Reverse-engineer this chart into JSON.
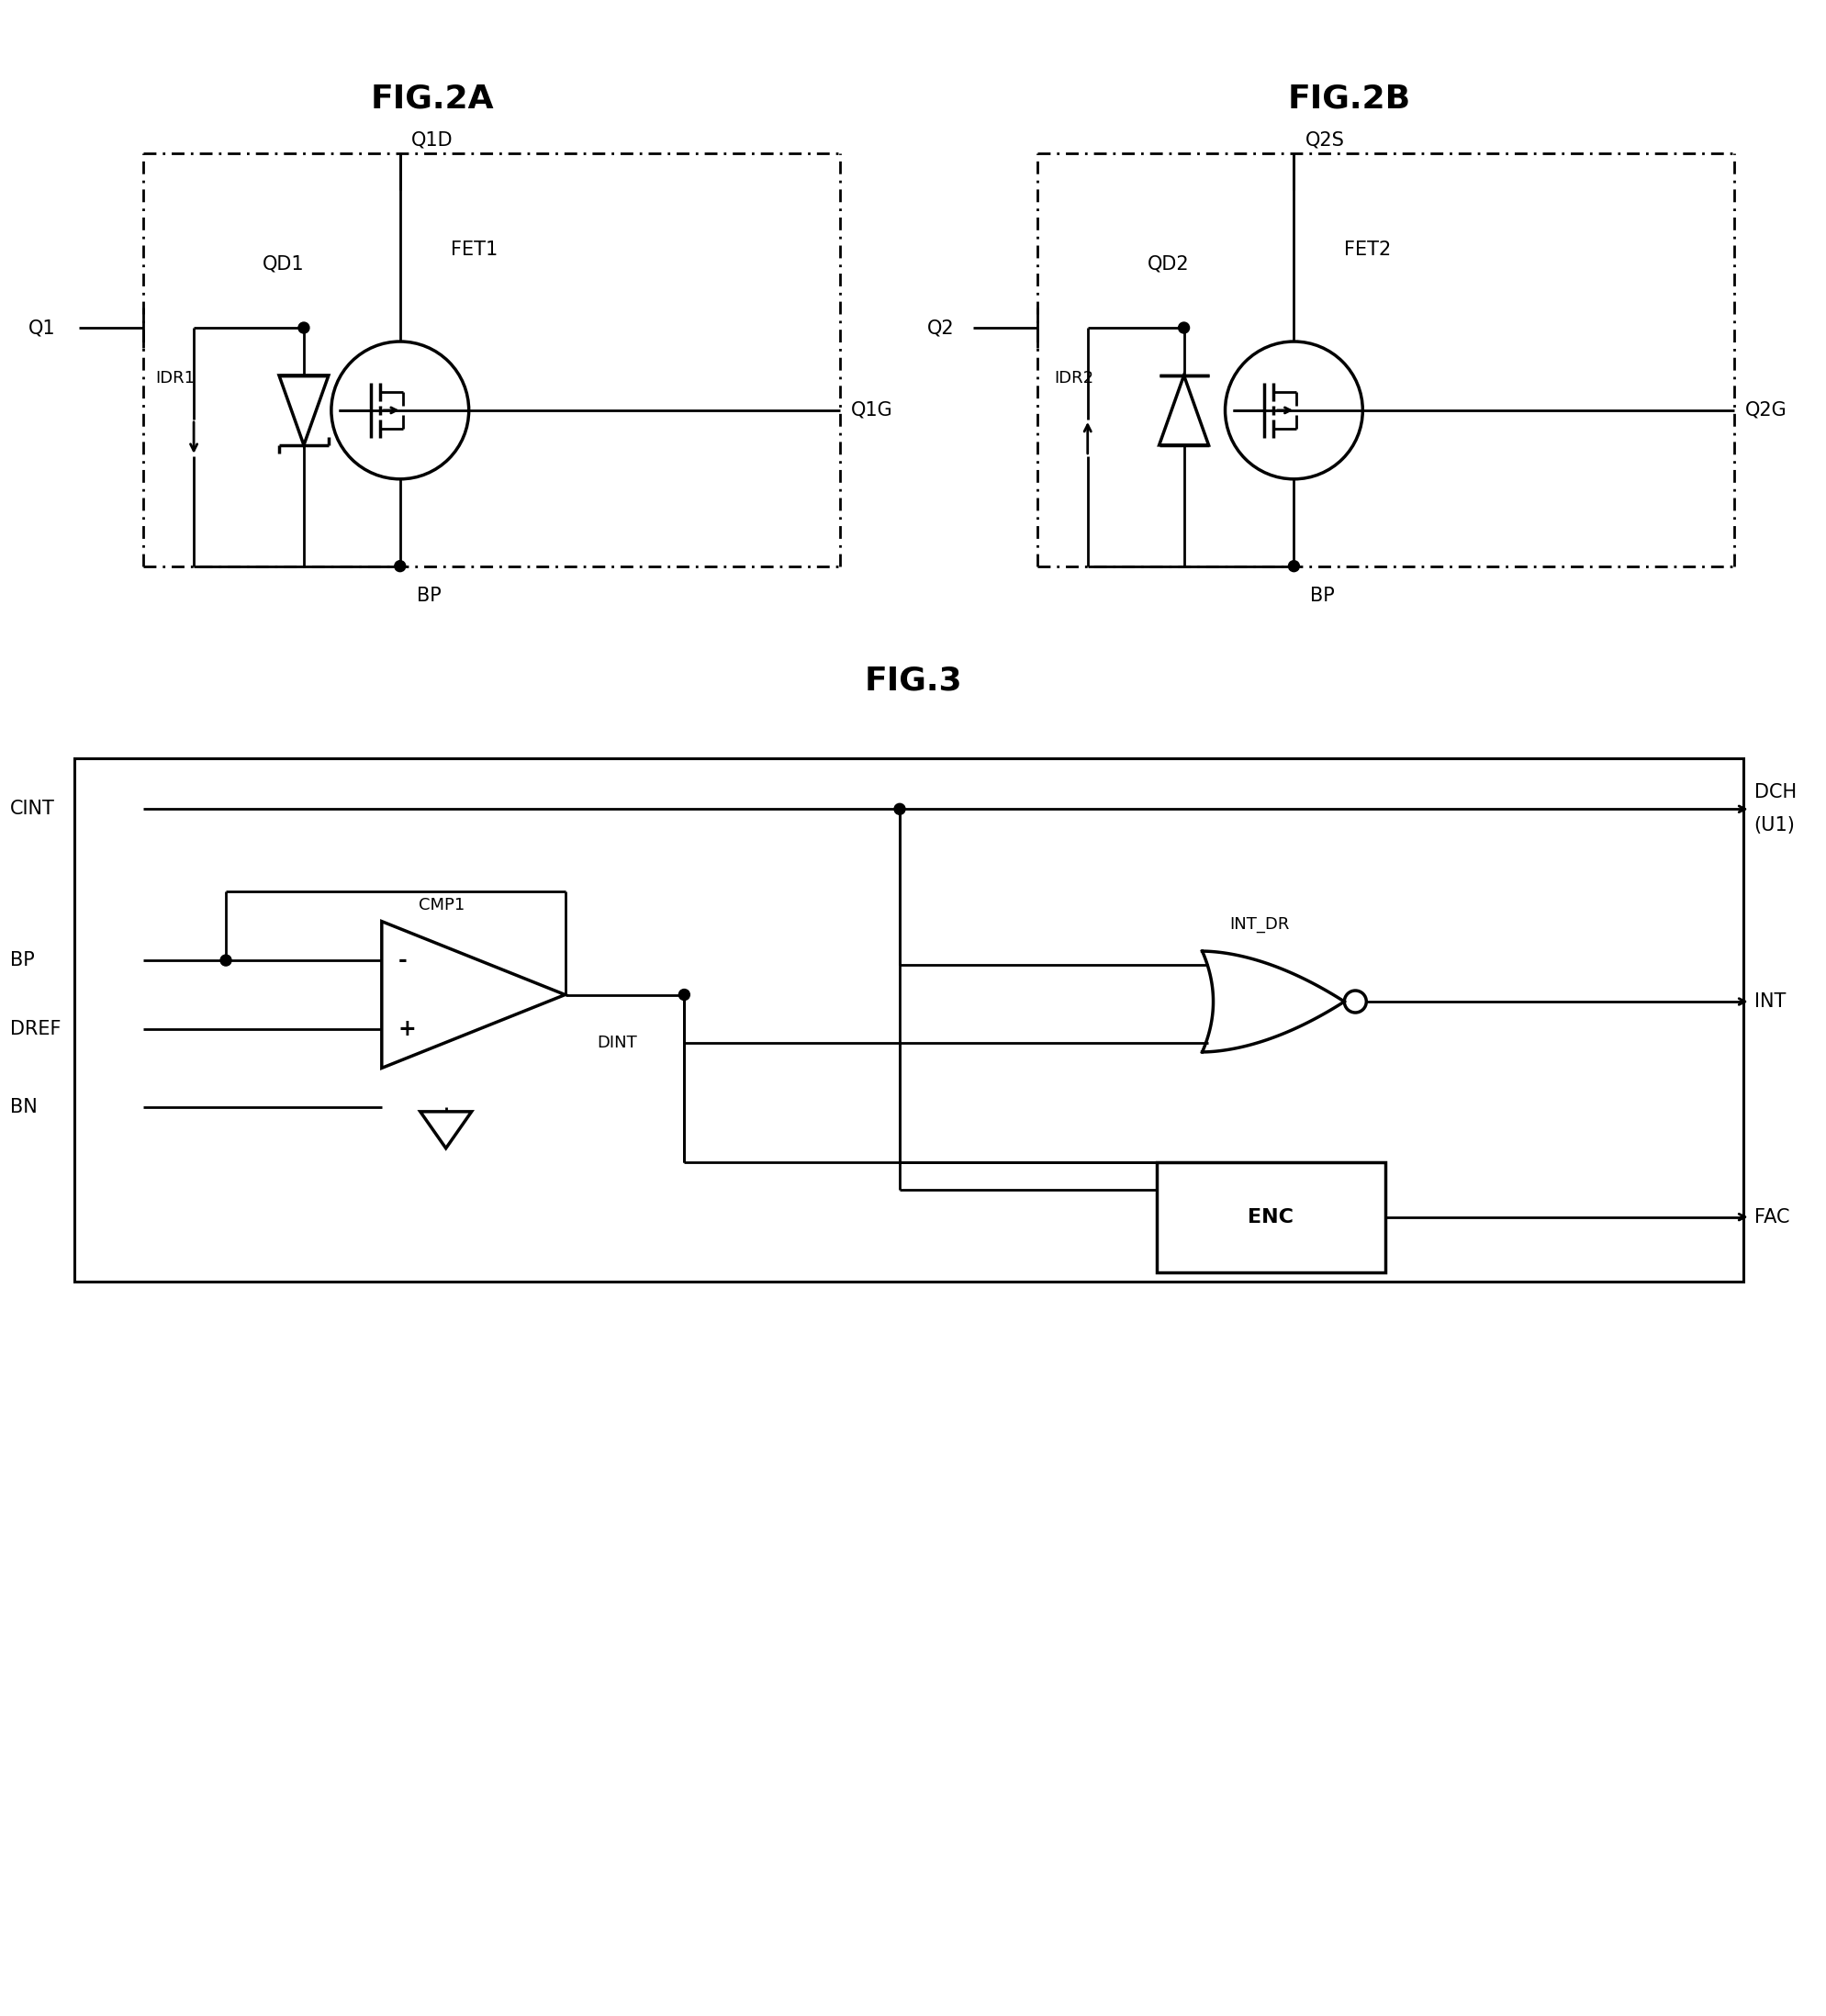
{
  "fig_title_2a": "FIG.2A",
  "fig_title_2b": "FIG.2B",
  "fig_title_3": "FIG.3",
  "background_color": "#ffffff",
  "line_color": "#000000",
  "title_fontsize": 26,
  "label_fontsize": 15,
  "small_label_fontsize": 13,
  "lw_main": 2.0,
  "lw_thick": 2.5
}
